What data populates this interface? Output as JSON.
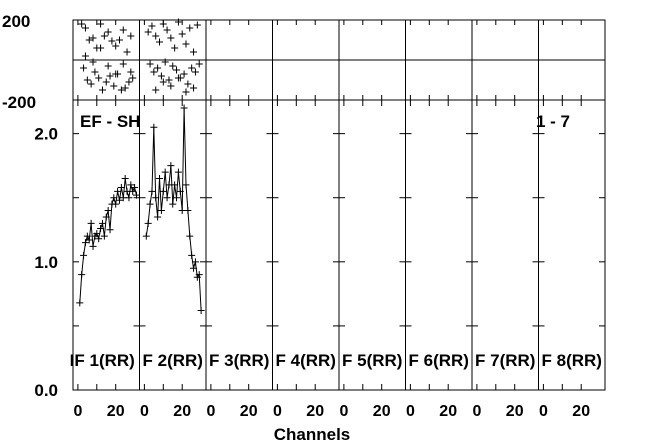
{
  "chart_data": [
    {
      "type": "scatter",
      "panel": "phase",
      "ylim": [
        -200,
        200
      ],
      "yticks": [
        "200",
        "-200"
      ],
      "panels": [
        {
          "x": [
            2,
            4,
            6,
            8,
            10,
            12,
            14,
            16,
            18,
            20,
            22,
            24,
            26,
            28,
            3,
            5,
            7,
            9,
            11,
            13,
            15,
            17,
            19,
            21,
            23,
            25,
            27,
            29,
            4,
            8,
            12,
            16,
            20,
            24,
            28
          ],
          "y": [
            180,
            160,
            100,
            110,
            60,
            180,
            120,
            140,
            95,
            70,
            100,
            150,
            40,
            120,
            -40,
            -100,
            -120,
            -60,
            -90,
            -150,
            -110,
            -80,
            -130,
            -70,
            -150,
            -140,
            -110,
            -90,
            20,
            -10,
            60,
            -30,
            -70,
            -20,
            -60
          ]
        },
        {
          "x": [
            2,
            4,
            6,
            8,
            10,
            12,
            14,
            16,
            18,
            20,
            22,
            24,
            26,
            28,
            3,
            5,
            7,
            9,
            11,
            13,
            15,
            17,
            19,
            21,
            23,
            25,
            27,
            29,
            6,
            10,
            14,
            18,
            22,
            26
          ],
          "y": [
            140,
            170,
            120,
            90,
            180,
            150,
            110,
            60,
            190,
            130,
            80,
            160,
            40,
            175,
            -20,
            -60,
            -40,
            -80,
            -10,
            -100,
            -30,
            -50,
            -90,
            -70,
            -120,
            -40,
            -60,
            -20,
            -150,
            -110,
            -130,
            -90,
            -160,
            -140
          ]
        }
      ]
    },
    {
      "type": "line",
      "panel": "amplitude",
      "title": "EF - SH",
      "annotation": "1 - 7",
      "xlabel": "Channels",
      "ylim": [
        0,
        2.2
      ],
      "yticks": [
        "2.0",
        "1.0",
        "0.0"
      ],
      "xticks": [
        "0",
        "20"
      ],
      "xlim": [
        -1,
        31
      ],
      "if_labels": [
        "IF 1(RR)",
        "F 2(RR)",
        "F 3(RR)",
        "F 4(RR)",
        "F 5(RR)",
        "F 6(RR)",
        "F 7(RR)",
        "F 8(RR)"
      ],
      "series": [
        {
          "x": [
            1,
            2,
            3,
            4,
            5,
            6,
            7,
            8,
            9,
            10,
            11,
            12,
            13,
            14,
            15,
            16,
            17,
            18,
            19,
            20,
            21,
            22,
            23,
            24,
            25,
            26,
            27,
            28,
            29,
            30,
            31
          ],
          "y": [
            0.68,
            0.9,
            1.05,
            1.15,
            1.2,
            1.17,
            1.3,
            1.12,
            1.2,
            1.22,
            1.18,
            1.26,
            1.3,
            1.2,
            1.35,
            1.4,
            1.25,
            1.45,
            1.5,
            1.45,
            1.55,
            1.48,
            1.58,
            1.5,
            1.65,
            1.55,
            1.5,
            1.6,
            1.55,
            1.58,
            1.52
          ]
        },
        {
          "x": [
            1,
            2,
            3,
            4,
            5,
            6,
            7,
            8,
            9,
            10,
            11,
            12,
            13,
            14,
            15,
            16,
            17,
            18,
            19,
            20,
            21,
            22,
            23,
            24,
            25,
            26,
            27,
            28,
            29,
            30
          ],
          "y": [
            1.2,
            1.3,
            1.45,
            1.55,
            2.05,
            1.5,
            1.35,
            1.65,
            1.4,
            1.55,
            1.7,
            1.5,
            1.6,
            1.75,
            1.45,
            1.6,
            1.5,
            1.7,
            1.55,
            1.4,
            2.2,
            1.6,
            1.4,
            1.2,
            1.05,
            0.95,
            1.0,
            0.88,
            0.9,
            0.62
          ]
        }
      ]
    }
  ]
}
